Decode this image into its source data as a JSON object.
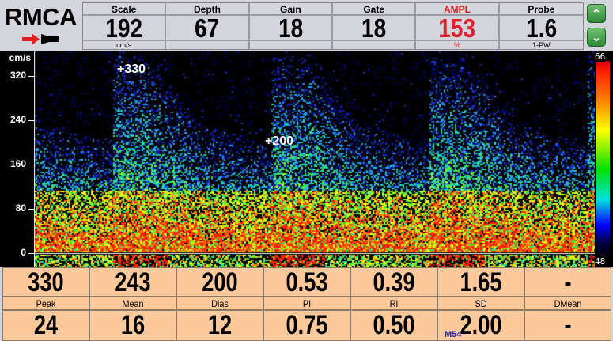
{
  "title": "RMCA",
  "header": [
    {
      "label": "Scale",
      "value": "192",
      "unit": "cm/s"
    },
    {
      "label": "Depth",
      "value": "67",
      "unit": ""
    },
    {
      "label": "Gain",
      "value": "18",
      "unit": ""
    },
    {
      "label": "Gate",
      "value": "18",
      "unit": ""
    },
    {
      "label": "AMPL",
      "value": "153",
      "unit": "%",
      "highlight": true
    },
    {
      "label": "Probe",
      "value": "1.6",
      "unit": "1-PW"
    }
  ],
  "buttons": {
    "up": "up-chevron-icon",
    "down": "down-chevron-icon"
  },
  "axis": {
    "unit": "cm/s",
    "ticks": [
      "320",
      "240",
      "160",
      "80",
      "0"
    ]
  },
  "colorbar": {
    "max": "66",
    "min": "48"
  },
  "annotations": {
    "peak": "+330",
    "dias": "+200"
  },
  "measurements": {
    "row1": [
      "330",
      "243",
      "200",
      "0.53",
      "0.39",
      "1.65",
      "-"
    ],
    "labels": [
      "Peak",
      "Mean",
      "Dias",
      "PI",
      "RI",
      "SD",
      "DMean"
    ],
    "row2": [
      "24",
      "16",
      "12",
      "0.75",
      "0.50",
      "2.00",
      "-"
    ]
  },
  "marker": "M54",
  "colors": {
    "ampl": "#e0202a",
    "table_bg": "#fdc89a"
  }
}
